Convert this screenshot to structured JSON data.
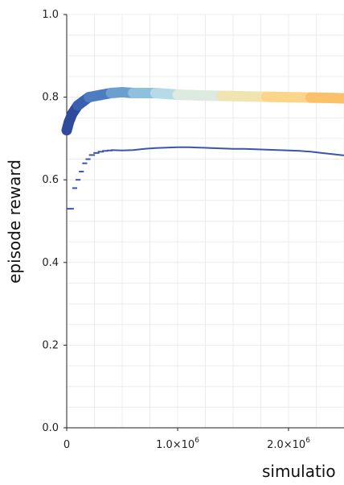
{
  "chart_data": {
    "type": "line",
    "xlabel": "simulatio",
    "ylabel": "episode reward",
    "xlim": [
      0,
      2500000
    ],
    "ylim": [
      0,
      1.0
    ],
    "grid": true,
    "x_ticks": [
      {
        "value": 0,
        "label": "0",
        "exp": ""
      },
      {
        "value": 1000000,
        "label": "1.0×10",
        "exp": "6"
      },
      {
        "value": 2000000,
        "label": "2.0×10",
        "exp": "6"
      }
    ],
    "y_ticks": [
      {
        "value": 0.0,
        "label": "0.0"
      },
      {
        "value": 0.2,
        "label": "0.2"
      },
      {
        "value": 0.4,
        "label": "0.4"
      },
      {
        "value": 0.6,
        "label": "0.6"
      },
      {
        "value": 0.8,
        "label": "0.8"
      },
      {
        "value": 1.0,
        "label": "1.0"
      }
    ],
    "series": [
      {
        "style": "gradient-thick",
        "x": [
          0,
          20000,
          50000,
          100000,
          150000,
          200000,
          300000,
          400000,
          500000,
          600000,
          700000,
          800000,
          900000,
          1000000,
          1200000,
          1400000,
          1600000,
          1800000,
          2000000,
          2200000,
          2400000,
          2500000
        ],
        "y": [
          0.72,
          0.74,
          0.76,
          0.78,
          0.79,
          0.8,
          0.805,
          0.81,
          0.812,
          0.81,
          0.81,
          0.81,
          0.808,
          0.806,
          0.804,
          0.803,
          0.802,
          0.801,
          0.8,
          0.799,
          0.798,
          0.797
        ],
        "colors": [
          "#2f4b9c",
          "#3a5fb0",
          "#4d7cc0",
          "#6a9fd0",
          "#8fc0dd",
          "#b6dae8",
          "#dceadf",
          "#f0e4b0",
          "#fbd68a",
          "#fbc06a"
        ]
      },
      {
        "style": "thin",
        "color": "#3a56a8",
        "x": [
          400000,
          500000,
          600000,
          700000,
          800000,
          900000,
          1000000,
          1100000,
          1200000,
          1300000,
          1400000,
          1500000,
          1600000,
          1700000,
          1800000,
          1900000,
          2000000,
          2100000,
          2200000,
          2300000,
          2400000,
          2500000
        ],
        "y": [
          0.672,
          0.671,
          0.672,
          0.675,
          0.677,
          0.678,
          0.679,
          0.679,
          0.678,
          0.677,
          0.676,
          0.675,
          0.675,
          0.674,
          0.673,
          0.672,
          0.671,
          0.67,
          0.668,
          0.665,
          0.662,
          0.659
        ]
      },
      {
        "style": "steps",
        "color": "#3a56a8",
        "x": [
          0,
          50000,
          80000,
          110000,
          140000,
          170000,
          200000,
          240000,
          280000,
          320000,
          360000,
          400000
        ],
        "y": [
          0.53,
          0.58,
          0.6,
          0.62,
          0.64,
          0.65,
          0.66,
          0.665,
          0.668,
          0.67,
          0.671,
          0.672
        ]
      }
    ]
  }
}
